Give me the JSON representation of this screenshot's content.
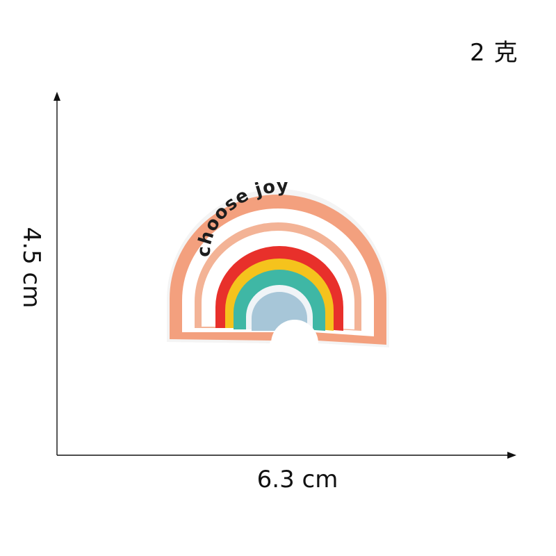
{
  "product": {
    "weight_label": "2 克",
    "height_label": "4.5 cm",
    "width_label": "6.3 cm",
    "patch_text": "choose joy"
  },
  "colors": {
    "background": "#ffffff",
    "axis": "#111111",
    "patch_peach": "#f3a07e",
    "patch_white": "#ffffff",
    "patch_red": "#e8302b",
    "patch_yellow": "#f5c31d",
    "patch_teal": "#3fb7a5",
    "patch_lightblue": "#a7c6d8",
    "text_black": "#1d1d1d"
  },
  "icons": {
    "patch": "rainbow-embroidered-patch"
  }
}
